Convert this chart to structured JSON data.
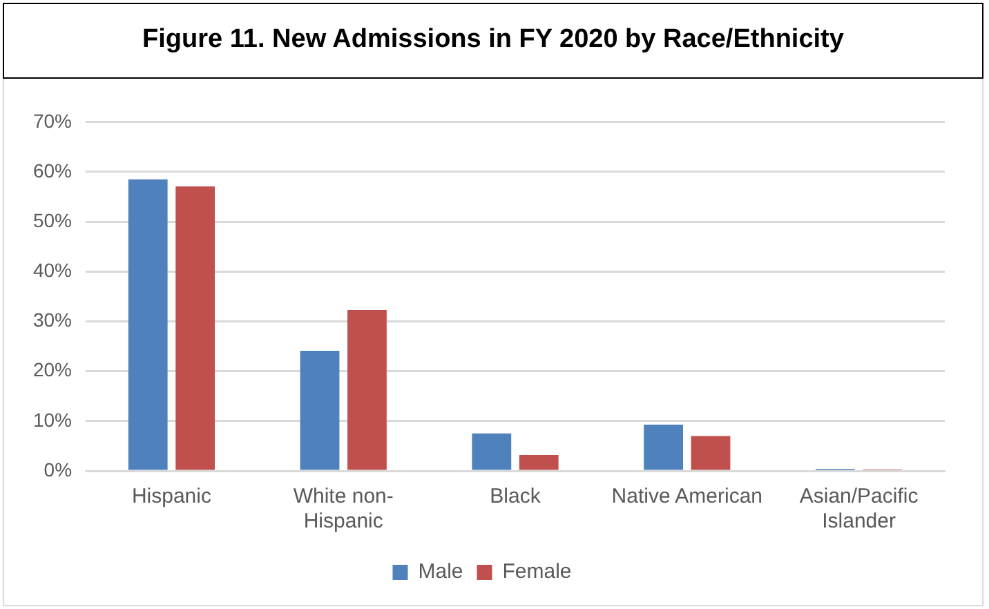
{
  "chart_data": {
    "type": "bar",
    "title": "Figure 11. New Admissions in FY 2020 by Race/Ethnicity",
    "categories": [
      "Hispanic",
      "White non-Hispanic",
      "Black",
      "Native American",
      "Asian/Pacific Islander"
    ],
    "series": [
      {
        "name": "Male",
        "color": "#4f81bd",
        "values": [
          58.5,
          24.1,
          7.5,
          9.3,
          0.4
        ]
      },
      {
        "name": "Female",
        "color": "#c0504d",
        "values": [
          57.1,
          32.3,
          3.2,
          7.0,
          0.3
        ]
      }
    ],
    "ylim": [
      0,
      70
    ],
    "yticks": [
      {
        "value": 0,
        "label": "0%"
      },
      {
        "value": 10,
        "label": "10%"
      },
      {
        "value": 20,
        "label": "20%"
      },
      {
        "value": 30,
        "label": "30%"
      },
      {
        "value": 40,
        "label": "40%"
      },
      {
        "value": 50,
        "label": "50%"
      },
      {
        "value": 60,
        "label": "60%"
      },
      {
        "value": 70,
        "label": "70%"
      }
    ],
    "grid": "y",
    "legend": "bottom"
  }
}
